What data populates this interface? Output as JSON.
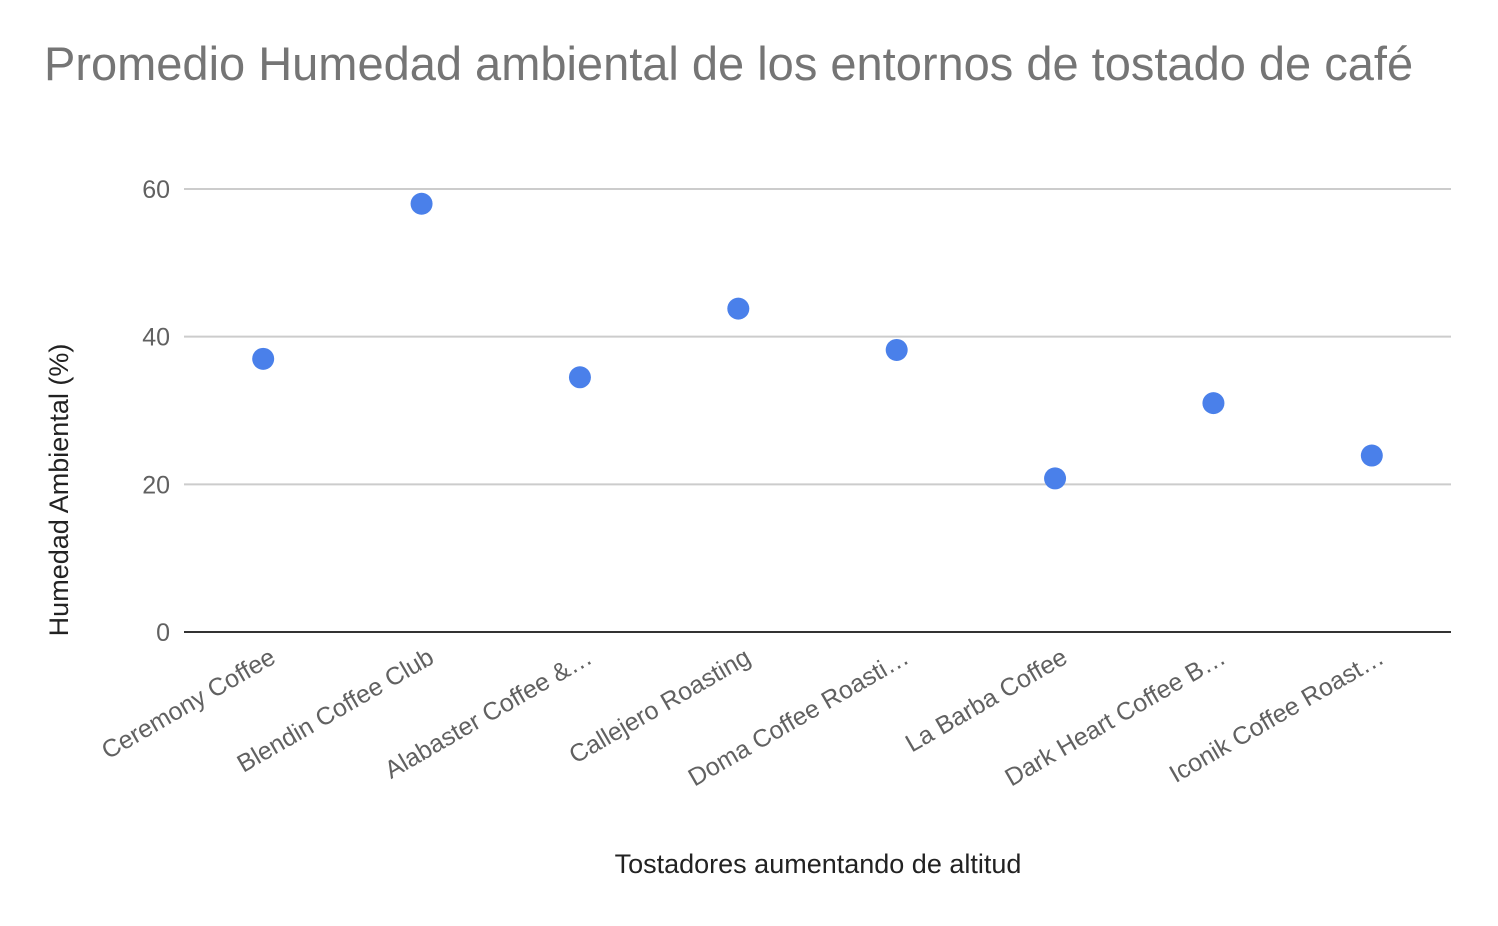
{
  "chart_data": {
    "type": "scatter",
    "title": "Promedio Humedad ambiental de los entornos de tostado de café",
    "xlabel": "Tostadores aumentando de altitud",
    "ylabel": "Humedad Ambiental (%)",
    "categories": [
      "Ceremony Coffee",
      "Blendin Coffee Club",
      "Alabaster Coffee &…",
      "Callejero Roasting",
      "Doma Coffee Roasti…",
      "La Barba Coffee",
      "Dark Heart Coffee B…",
      "Iconik Coffee Roast…"
    ],
    "values": [
      37,
      58,
      34.5,
      43.8,
      38.2,
      20.8,
      31,
      23.9
    ],
    "y_ticks": [
      "0",
      "20",
      "40",
      "60"
    ],
    "y_tick_values": [
      0,
      20,
      40,
      60
    ],
    "ylim": [
      0,
      60
    ],
    "grid": true,
    "legend": "none",
    "colors": {
      "point": "#4a80ea",
      "grid": "#cccccc",
      "baseline": "#333333",
      "title": "#757575"
    }
  }
}
